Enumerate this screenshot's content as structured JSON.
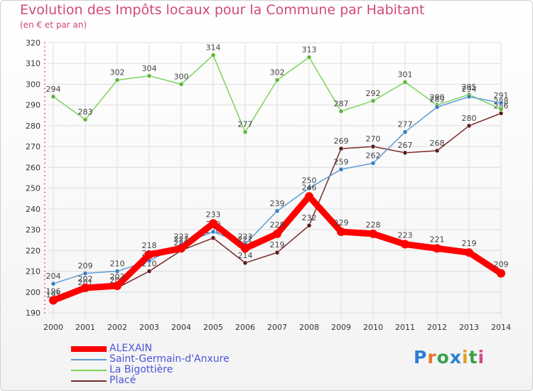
{
  "header": {
    "title": "Evolution des Impôts locaux pour la Commune par Habitant",
    "subtitle": "(en € et par an)"
  },
  "logo": {
    "text": "Proxiti"
  },
  "colors": {
    "title": "#d2477c",
    "legend_text": "#4a55d8",
    "grid": "#dddddd",
    "tick_mark": "#d02050"
  },
  "chart_data": {
    "type": "line",
    "title": "Evolution des Impôts locaux pour la Commune par Habitant",
    "subtitle": "(en € et par an)",
    "xlabel": "",
    "ylabel": "",
    "categories": [
      "2000",
      "2001",
      "2002",
      "2003",
      "2004",
      "2005",
      "2006",
      "2007",
      "2008",
      "2009",
      "2010",
      "2011",
      "2012",
      "2013",
      "2014"
    ],
    "ylim": [
      190,
      320
    ],
    "yticks": [
      190,
      200,
      210,
      220,
      230,
      240,
      250,
      260,
      270,
      280,
      290,
      300,
      310,
      320
    ],
    "grid": true,
    "legend_position": "bottom-left",
    "series": [
      {
        "name": "Place",
        "color": "#7a2a2a",
        "marker": "#5a1a1a",
        "values": [
          195,
          201,
          202,
          210,
          220,
          226,
          214,
          219,
          232,
          269,
          270,
          267,
          268,
          280,
          286
        ],
        "labels": [
          "195",
          "201",
          "202",
          "210",
          "220",
          "226",
          "214",
          "219",
          "232",
          "269",
          "270",
          "267",
          "268",
          "280",
          "286"
        ]
      },
      {
        "name": "La Bigottière",
        "color": "#7dd35a",
        "marker": "#5cb73a",
        "values": [
          294,
          283,
          302,
          304,
          300,
          314,
          277,
          302,
          313,
          287,
          292,
          301,
          290,
          295,
          288
        ],
        "labels": [
          "294",
          "283",
          "302",
          "304",
          "300",
          "314",
          "277",
          "302",
          "313",
          "287",
          "292",
          "301",
          "290",
          "295",
          "288"
        ]
      },
      {
        "name": "Saint-Germain-d'Anxure",
        "color": "#5b9bd5",
        "marker": "#3a7cc0",
        "values": [
          204,
          209,
          210,
          215,
          223,
          229,
          223,
          239,
          250,
          259,
          262,
          277,
          289,
          294,
          291
        ],
        "labels": [
          "204",
          "209",
          "210",
          "215",
          "223",
          "229",
          "223",
          "239",
          "250",
          "259",
          "262",
          "277",
          "289",
          "294",
          "291"
        ]
      },
      {
        "name": "ALEXAIN",
        "color": "#ff0000",
        "marker": "#ff0000",
        "values": [
          196,
          202,
          203,
          218,
          221,
          233,
          221,
          228,
          246,
          229,
          228,
          223,
          221,
          219,
          209
        ],
        "labels": [
          "196",
          "202",
          "203",
          "218",
          "221",
          "233",
          "221",
          "228",
          "246",
          "229",
          "228",
          "223",
          "221",
          "219",
          "209"
        ]
      }
    ]
  },
  "legend": {
    "items": [
      {
        "name": "ALEXAIN",
        "color": "#ff0000"
      },
      {
        "name": "Saint-Germain-d'Anxure",
        "color": "#5b9bd5"
      },
      {
        "name": "La Bigottière",
        "color": "#7dd35a"
      },
      {
        "name": "Placé",
        "color": "#7a2a2a"
      }
    ]
  }
}
